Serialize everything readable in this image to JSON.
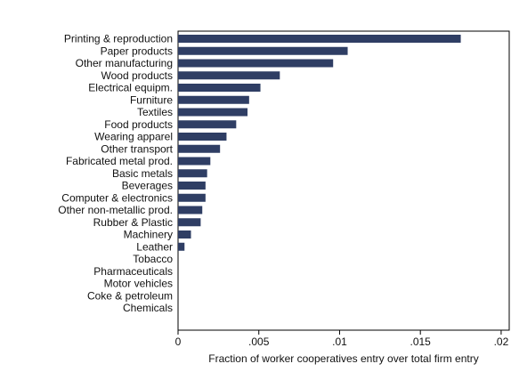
{
  "chart_data": {
    "type": "bar",
    "orientation": "horizontal",
    "categories": [
      "Printing & reproduction",
      "Paper products",
      "Other manufacturing",
      "Wood products",
      "Electrical equipm.",
      "Furniture",
      "Textiles",
      "Food products",
      "Wearing apparel",
      "Other transport",
      "Fabricated metal prod.",
      "Basic metals",
      "Beverages",
      "Computer & electronics",
      "Other non-metallic prod.",
      "Rubber & Plastic",
      "Machinery",
      "Leather",
      "Tobacco",
      "Pharmaceuticals",
      "Motor vehicles",
      "Coke & petroleum",
      "Chemicals"
    ],
    "values": [
      0.0175,
      0.0105,
      0.0096,
      0.0063,
      0.0051,
      0.0044,
      0.0043,
      0.0036,
      0.003,
      0.0026,
      0.002,
      0.0018,
      0.0017,
      0.0017,
      0.0015,
      0.0014,
      0.0008,
      0.0004,
      0,
      0,
      0,
      0,
      0
    ],
    "title": "",
    "xlabel": "Fraction of worker cooperatives entry over total firm entry",
    "ylabel": "",
    "xlim": [
      0,
      0.0205
    ],
    "xticks": [
      0,
      0.005,
      0.01,
      0.015,
      0.02
    ],
    "xtick_labels": [
      "0",
      ".005",
      ".01",
      ".015",
      ".02"
    ],
    "grid": false,
    "legend": "none",
    "bar_color": "#2f3e64"
  }
}
